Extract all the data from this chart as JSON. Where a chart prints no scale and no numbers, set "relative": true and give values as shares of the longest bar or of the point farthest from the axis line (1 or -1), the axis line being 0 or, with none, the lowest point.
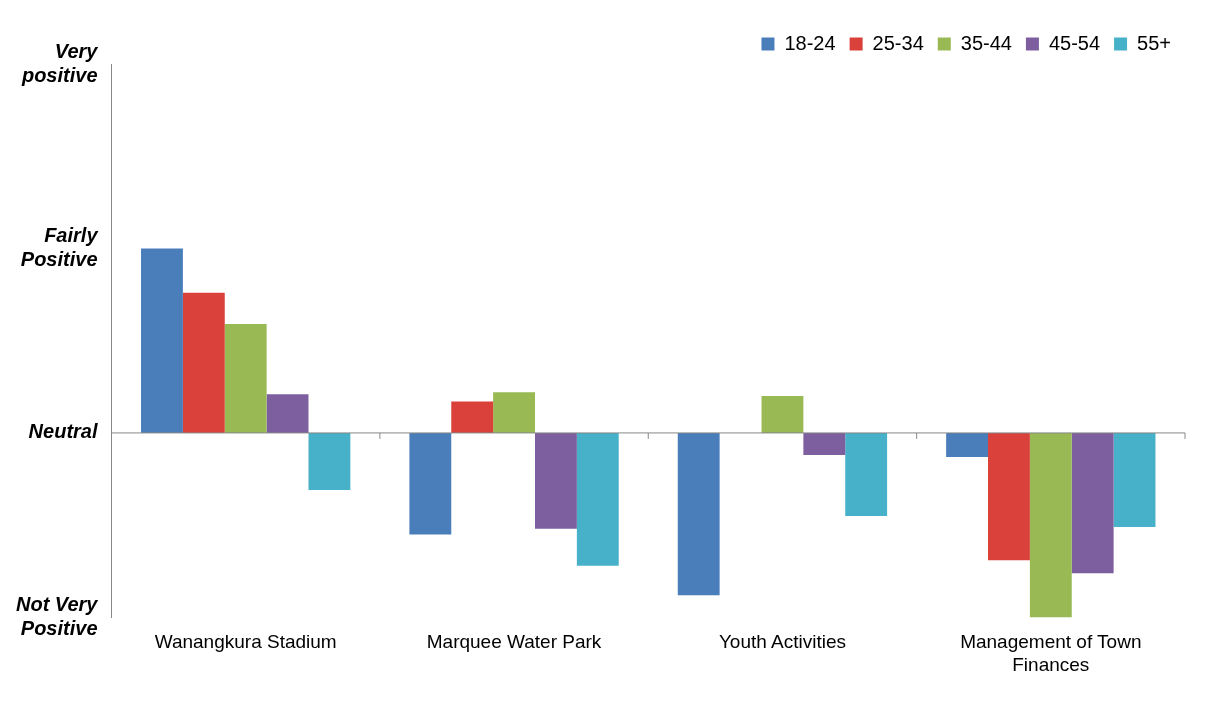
{
  "chart_data": {
    "type": "bar",
    "categories": [
      "Wanangkura Stadium",
      "Marquee Water Park",
      "Youth Activities",
      "Management of Town Finances"
    ],
    "series": [
      {
        "name": "18-24",
        "color": "#4a7ebb",
        "values": [
          1.0,
          -0.55,
          -0.88,
          -0.13
        ]
      },
      {
        "name": "25-34",
        "color": "#d9413a",
        "values": [
          0.76,
          0.17,
          0,
          -0.69
        ]
      },
      {
        "name": "35-44",
        "color": "#98b954",
        "values": [
          0.59,
          0.22,
          0.2,
          -1.0
        ]
      },
      {
        "name": "45-54",
        "color": "#7d5fa0",
        "values": [
          0.21,
          -0.52,
          -0.12,
          -0.76
        ]
      },
      {
        "name": "55+",
        "color": "#46b1c9",
        "values": [
          -0.31,
          -0.72,
          -0.45,
          -0.51
        ]
      }
    ],
    "relative": true,
    "annotations": [
      "Not Very Positive",
      "Neutral",
      "Fairly Positive",
      "Very positive"
    ],
    "grid": false,
    "legend": "top right"
  }
}
